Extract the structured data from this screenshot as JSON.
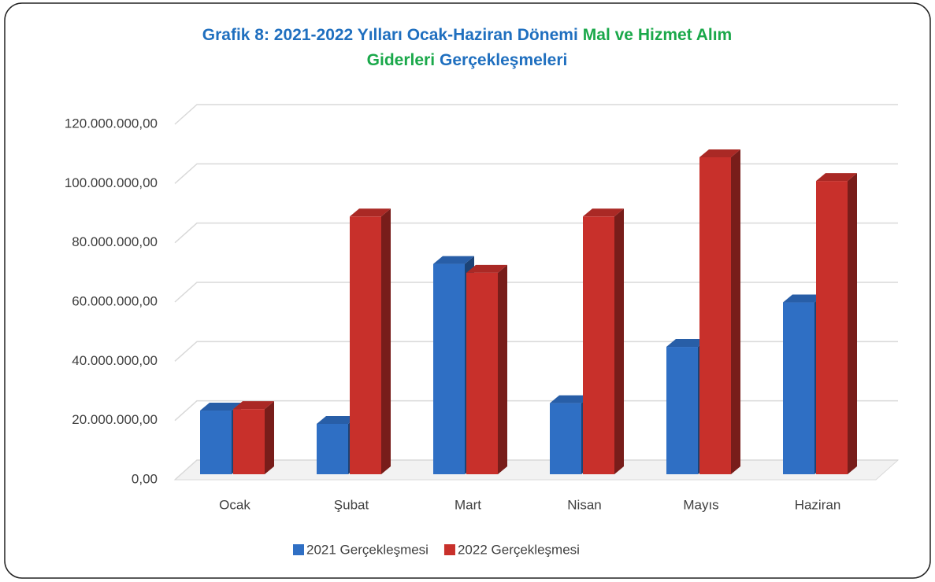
{
  "chart_data": {
    "type": "bar3d",
    "title_lines": [
      [
        {
          "text": "Grafik 8: 2021-2022 Yılları Ocak-Haziran Dönemi",
          "color": "#1f6fbf"
        },
        {
          "text": "Mal ve Hizmet Alım",
          "color": "#1aa84a"
        }
      ],
      [
        {
          "text": "Giderleri",
          "color": "#1aa84a"
        },
        {
          "text": "Gerçekleşmeleri",
          "color": "#1f6fbf"
        }
      ]
    ],
    "categories": [
      "Ocak",
      "Şubat",
      "Mart",
      "Nisan",
      "Mayıs",
      "Haziran"
    ],
    "series": [
      {
        "name": "2021 Gerçekleşmesi",
        "color": "#2f6fc4",
        "values": [
          21500000,
          17000000,
          71000000,
          24000000,
          43000000,
          58000000
        ]
      },
      {
        "name": "2022 Gerçekleşmesi",
        "color": "#c8302b",
        "values": [
          22000000,
          87000000,
          68000000,
          87000000,
          107000000,
          99000000
        ]
      }
    ],
    "ylim": [
      0,
      120000000
    ],
    "yticks": [
      {
        "value": 0,
        "label": "0,00"
      },
      {
        "value": 20000000,
        "label": "20.000.000,00"
      },
      {
        "value": 40000000,
        "label": "40.000.000,00"
      },
      {
        "value": 60000000,
        "label": "60.000.000,00"
      },
      {
        "value": 80000000,
        "label": "80.000.000,00"
      },
      {
        "value": 100000000,
        "label": "100.000.000,00"
      },
      {
        "value": 120000000,
        "label": "120.000.000,00"
      }
    ],
    "grid": true,
    "legend": "bottom"
  }
}
